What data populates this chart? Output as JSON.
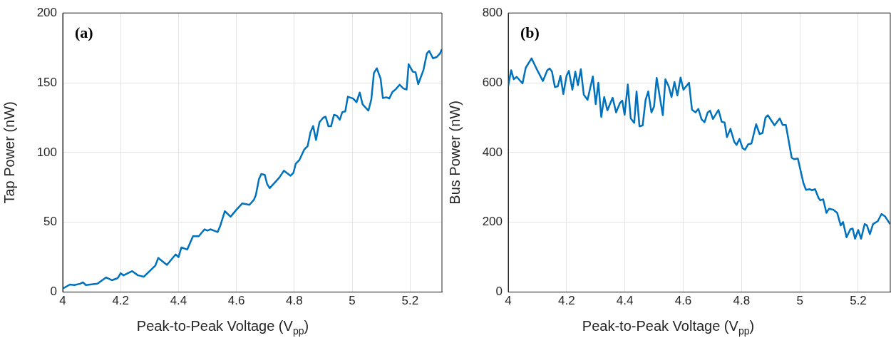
{
  "chart_data": [
    {
      "type": "line",
      "xlabel": "Peak-to-Peak Voltage (V$_{pp}$)",
      "ylabel": "Tap Power (nW)",
      "annotations": [
        "(a)"
      ],
      "grid": true,
      "xlim": [
        4,
        5.31
      ],
      "xticks": [
        4,
        4.2,
        4.4,
        4.6,
        4.8,
        5,
        5.2
      ],
      "ylim": [
        0,
        200
      ],
      "yticks": [
        0,
        50,
        100,
        150,
        200
      ],
      "series": [
        {
          "color": "#0072bd",
          "x": [
            4.0,
            4.025,
            4.04,
            4.06,
            4.07,
            4.08,
            4.12,
            4.15,
            4.17,
            4.19,
            4.2,
            4.21,
            4.24,
            4.26,
            4.28,
            4.32,
            4.33,
            4.36,
            4.39,
            4.4,
            4.41,
            4.43,
            4.45,
            4.47,
            4.49,
            4.5,
            4.51,
            4.535,
            4.545,
            4.56,
            4.58,
            4.6,
            4.62,
            4.645,
            4.66,
            4.667,
            4.678,
            4.686,
            4.698,
            4.706,
            4.715,
            4.748,
            4.764,
            4.787,
            4.797,
            4.805,
            4.818,
            4.834,
            4.846,
            4.856,
            4.865,
            4.875,
            4.887,
            4.9,
            4.908,
            4.918,
            4.927,
            4.937,
            4.947,
            4.957,
            4.966,
            4.976,
            4.985,
            5.003,
            5.015,
            5.026,
            5.036,
            5.056,
            5.066,
            5.075,
            5.085,
            5.098,
            5.106,
            5.118,
            5.128,
            5.139,
            5.151,
            5.164,
            5.177,
            5.188,
            5.195,
            5.209,
            5.219,
            5.228,
            5.246,
            5.258,
            5.266,
            5.279,
            5.292,
            5.304,
            5.31
          ],
          "values": [
            2.5,
            5.4,
            5,
            6,
            7,
            5,
            6,
            10.5,
            8.5,
            10,
            13.5,
            12,
            15,
            12,
            11,
            19,
            24.5,
            19.5,
            27,
            25,
            32,
            30.5,
            40,
            40,
            45,
            44,
            45,
            43,
            48,
            58,
            54,
            59,
            63.5,
            62.5,
            66,
            69.4,
            81,
            84.6,
            84,
            77.5,
            74.5,
            82,
            87,
            83.4,
            85.5,
            92,
            94.8,
            102,
            104.6,
            114.7,
            119,
            109,
            121.8,
            125,
            125.7,
            118.8,
            118.8,
            127,
            126.4,
            123.5,
            129,
            129.5,
            140,
            138.7,
            136,
            143,
            134.5,
            130,
            138,
            157,
            160.4,
            153,
            139,
            139.6,
            138.7,
            143.4,
            145.5,
            148.6,
            145.9,
            145.2,
            163.3,
            158,
            157.4,
            149,
            159,
            171,
            172.8,
            167.5,
            168.4,
            171.2,
            174
          ]
        }
      ]
    },
    {
      "type": "line",
      "xlabel": "Peak-to-Peak Voltage (V$_{pp}$)",
      "ylabel": "Bus Power (nW)",
      "annotations": [
        "(b)"
      ],
      "grid": true,
      "xlim": [
        4,
        5.31
      ],
      "xticks": [
        4,
        4.2,
        4.4,
        4.6,
        4.8,
        5,
        5.2
      ],
      "ylim": [
        0,
        800
      ],
      "yticks": [
        0,
        200,
        400,
        600,
        800
      ],
      "series": [
        {
          "color": "#0072bd",
          "x": [
            4.0,
            4.01,
            4.019,
            4.029,
            4.049,
            4.06,
            4.08,
            4.099,
            4.119,
            4.134,
            4.142,
            4.15,
            4.16,
            4.17,
            4.179,
            4.189,
            4.2,
            4.208,
            4.22,
            4.23,
            4.239,
            4.249,
            4.259,
            4.272,
            4.29,
            4.3,
            4.309,
            4.319,
            4.329,
            4.34,
            4.358,
            4.37,
            4.383,
            4.391,
            4.399,
            4.41,
            4.42,
            4.432,
            4.44,
            4.45,
            4.461,
            4.471,
            4.48,
            4.491,
            4.5,
            4.509,
            4.53,
            4.539,
            4.55,
            4.56,
            4.57,
            4.58,
            4.591,
            4.601,
            4.62,
            4.63,
            4.642,
            4.652,
            4.663,
            4.673,
            4.684,
            4.692,
            4.702,
            4.721,
            4.732,
            4.742,
            4.75,
            4.762,
            4.775,
            4.783,
            4.793,
            4.804,
            4.812,
            4.823,
            4.834,
            4.85,
            4.862,
            4.872,
            4.882,
            4.89,
            4.913,
            4.931,
            4.941,
            4.952,
            4.972,
            4.98,
            4.993,
            5.012,
            5.021,
            5.034,
            5.042,
            5.052,
            5.064,
            5.07,
            5.08,
            5.091,
            5.1,
            5.115,
            5.128,
            5.14,
            5.148,
            5.16,
            5.173,
            5.181,
            5.189,
            5.2,
            5.21,
            5.222,
            5.23,
            5.24,
            5.251,
            5.267,
            5.28,
            5.292,
            5.309
          ],
          "values": [
            591,
            636,
            610,
            617,
            598,
            643,
            670,
            637,
            605,
            636,
            641,
            632,
            588,
            590,
            620,
            568,
            620,
            634,
            580,
            632,
            593,
            639,
            566,
            551,
            618,
            539,
            600,
            502,
            559,
            521,
            557,
            515,
            542,
            549,
            508,
            595,
            498,
            485,
            575,
            475,
            478,
            551,
            575,
            515,
            532,
            614,
            507,
            610,
            590,
            559,
            602,
            564,
            615,
            580,
            600,
            523,
            515,
            525,
            495,
            487,
            515,
            520,
            496,
            522,
            488,
            486,
            444,
            468,
            431,
            422,
            439,
            412,
            408,
            424,
            426,
            481,
            453,
            456,
            500,
            507,
            478,
            498,
            479,
            479,
            385,
            381,
            383,
            313,
            293,
            295,
            292,
            295,
            270,
            263,
            266,
            227,
            239,
            236,
            227,
            191,
            201,
            157,
            180,
            182,
            153,
            178,
            153,
            195,
            191,
            166,
            195,
            203,
            224,
            217,
            195
          ]
        }
      ]
    }
  ]
}
